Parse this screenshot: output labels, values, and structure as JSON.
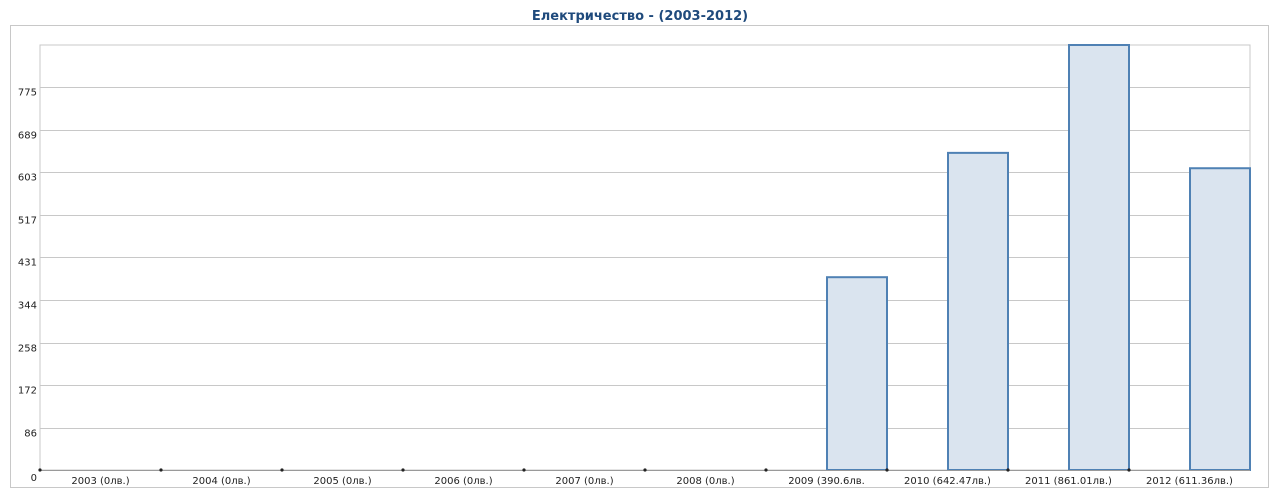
{
  "chart_data": {
    "type": "bar",
    "title": "Електричество - (2003-2012)",
    "categories": [
      "2003 (0лв.)",
      "2004 (0лв.)",
      "2005 (0лв.)",
      "2006 (0лв.)",
      "2007 (0лв.)",
      "2008 (0лв.)",
      "2009 (390.6лв.",
      "2010 (642.47лв.)",
      "2011 (861.01лв.)",
      "2012 (611.36лв.)"
    ],
    "values": [
      0,
      0,
      0,
      0,
      0,
      0,
      390.6,
      642.47,
      861.01,
      611.36
    ],
    "yticks": [
      "0",
      "86",
      "172",
      "258",
      "344",
      "431",
      "517",
      "603",
      "689",
      "775"
    ],
    "ylim": [
      0,
      861.01
    ],
    "grid": true,
    "colors": {
      "bar_fill": "#dae4ef",
      "bar_stroke": "#4f81b4",
      "grid": "#c8c8c8",
      "title": "#1f4a7c"
    }
  }
}
